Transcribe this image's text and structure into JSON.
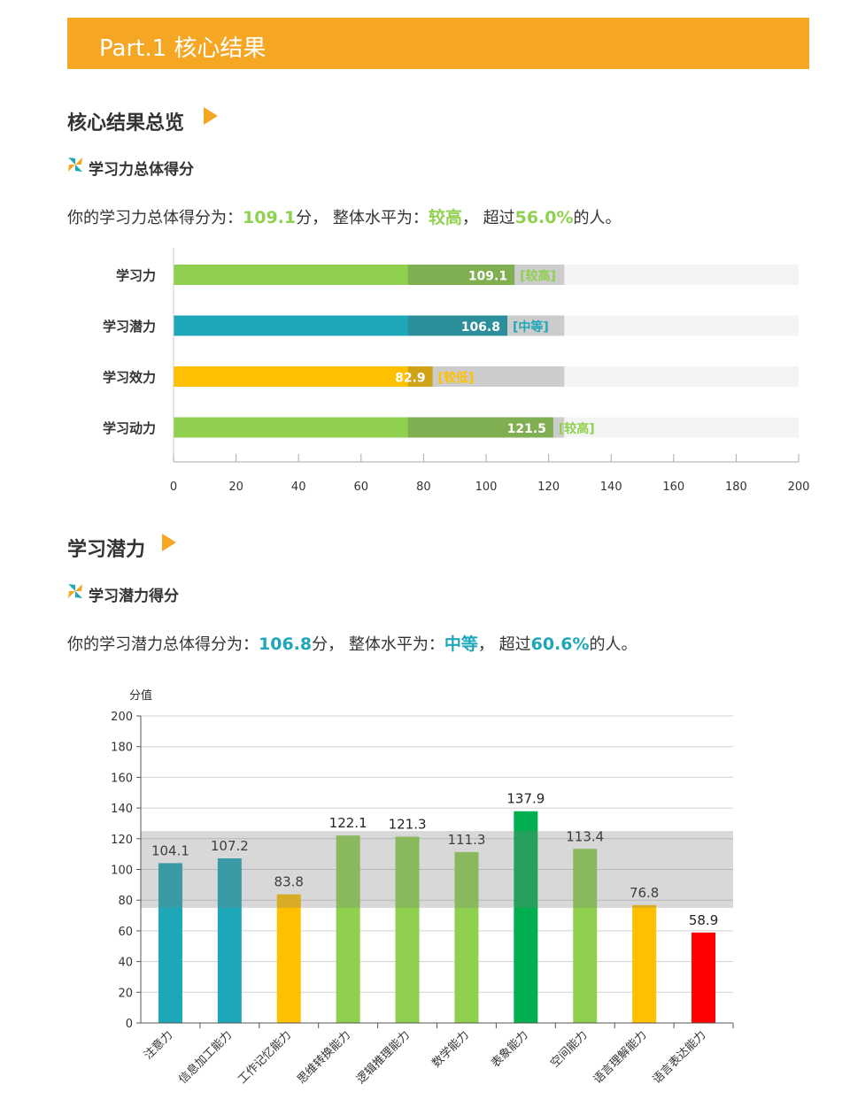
{
  "banner": {
    "title": "Part.1 核心结果"
  },
  "section1": {
    "title": "核心结果总览",
    "subtitle": "学习力总体得分",
    "summary": {
      "p1": "你的学习力总体得分为：",
      "score": "109.1",
      "p2": "分，  整体水平为：",
      "level": "较高",
      "p3": "，  超过",
      "percent": "56.0%",
      "p4": "的人。"
    }
  },
  "section2": {
    "title": "学习潜力",
    "subtitle": "学习潜力得分",
    "summary": {
      "p1": "你的学习潜力总体得分为：",
      "score": "106.8",
      "p2": "分，  整体水平为：",
      "level": "中等",
      "p3": "，  超过",
      "percent": "60.6%",
      "p4": "的人。"
    }
  },
  "colors": {
    "accent": "#f5a623",
    "green": "#8fd14f",
    "teal": "#1da7b8",
    "amber": "#ffc000",
    "deepgreen": "#00b050",
    "red": "#ff0000"
  },
  "chart_data": [
    {
      "type": "bar",
      "orientation": "horizontal",
      "categories": [
        "学习力",
        "学习潜力",
        "学习效力",
        "学习动力"
      ],
      "values": [
        109.1,
        106.8,
        82.9,
        121.5
      ],
      "value_labels": [
        "109.1",
        "106.8",
        "82.9",
        "121.5"
      ],
      "level_labels": [
        "[较高]",
        "[中等]",
        "[较低]",
        "[较高]"
      ],
      "bar_colors": [
        "#8fd14f",
        "#1da7b8",
        "#ffc000",
        "#8fd14f"
      ],
      "reference_band": [
        75,
        125
      ],
      "xlim": [
        0,
        200
      ],
      "xticks": [
        0,
        20,
        40,
        60,
        80,
        100,
        120,
        140,
        160,
        180,
        200
      ]
    },
    {
      "type": "bar",
      "categories": [
        "注意力",
        "信息加工能力",
        "工作记忆能力",
        "思维转换能力",
        "逻辑推理能力",
        "数学能力",
        "表象能力",
        "空间能力",
        "语言理解能力",
        "语言表达能力"
      ],
      "values": [
        104.1,
        107.2,
        83.8,
        122.1,
        121.3,
        111.3,
        137.9,
        113.4,
        76.8,
        58.9
      ],
      "value_labels": [
        "104.1",
        "107.2",
        "83.8",
        "122.1",
        "121.3",
        "111.3",
        "137.9",
        "113.4",
        "76.8",
        "58.9"
      ],
      "bar_colors": [
        "#1da7b8",
        "#1da7b8",
        "#ffc000",
        "#8fd14f",
        "#8fd14f",
        "#8fd14f",
        "#00b050",
        "#8fd14f",
        "#ffc000",
        "#ff0000"
      ],
      "reference_band": [
        75,
        125
      ],
      "ylabel": "分值",
      "ylim": [
        0,
        200
      ],
      "yticks": [
        0,
        20,
        40,
        60,
        80,
        100,
        120,
        140,
        160,
        180,
        200
      ],
      "grid": true
    }
  ]
}
